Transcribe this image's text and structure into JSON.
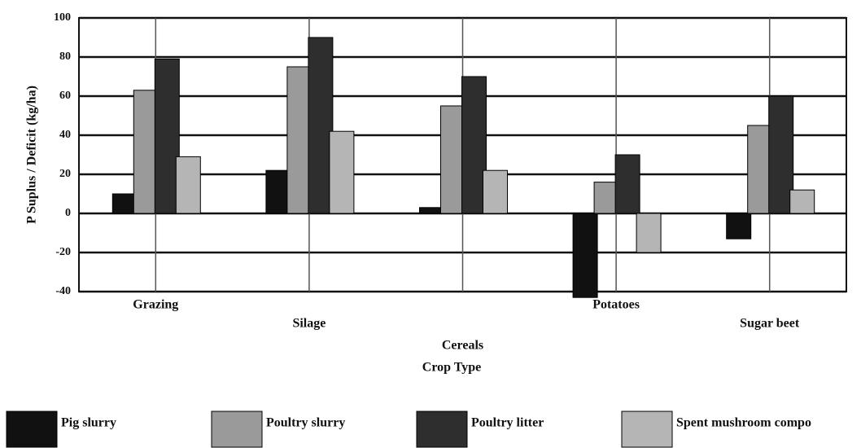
{
  "chart_data": {
    "type": "bar",
    "ylabel": "P Suplus / Deficit (kg/ha)",
    "xlabel": "Crop Type",
    "categories": [
      "Grazing",
      "Silage",
      "Cereals",
      "Potatoes",
      "Sugar beet"
    ],
    "series": [
      {
        "name": "Pig slurry",
        "color": "#111111",
        "values": [
          10,
          22,
          3,
          -43,
          -13
        ]
      },
      {
        "name": "Poultry slurry",
        "color": "#9a9a9a",
        "values": [
          63,
          75,
          55,
          16,
          45
        ]
      },
      {
        "name": "Poultry litter",
        "color": "#2e2e2e",
        "values": [
          79,
          90,
          70,
          30,
          60
        ]
      },
      {
        "name": "Spent mushroom compo",
        "color": "#b5b5b5",
        "values": [
          29,
          42,
          22,
          -20,
          12
        ]
      }
    ],
    "ylim": [
      -40,
      100
    ],
    "yticks": [
      -40,
      -20,
      0,
      20,
      40,
      60,
      80,
      100
    ],
    "grid": true
  }
}
